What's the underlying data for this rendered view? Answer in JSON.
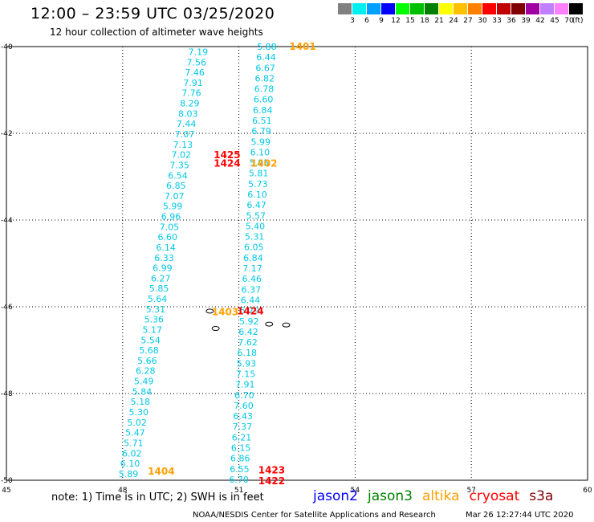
{
  "header": {
    "title": "12:00 – 23:59 UTC 03/25/2020",
    "subtitle": "12 hour collection of altimeter wave heights"
  },
  "legend": {
    "unit": "(ft)",
    "colors": [
      "#808080",
      "#00f0f0",
      "#00a0ff",
      "#0000ff",
      "#00ff00",
      "#00c000",
      "#008000",
      "#ffff00",
      "#ffc000",
      "#ff8000",
      "#ff0000",
      "#c00000",
      "#800000",
      "#a000a0",
      "#c080ff",
      "#ff80ff",
      "#000000"
    ],
    "labels": [
      "3",
      "6",
      "9",
      "12",
      "15",
      "18",
      "21",
      "24",
      "27",
      "30",
      "33",
      "36",
      "39",
      "42",
      "45",
      "70"
    ]
  },
  "map_data": {
    "lon_min": 45,
    "lon_max": 60,
    "lat_min": -50,
    "lat_max": -40,
    "x_ticks": [
      45,
      48,
      51,
      54,
      57,
      60
    ],
    "x_tick_labels": [
      "45",
      "48",
      "51",
      "54",
      "57",
      "60"
    ],
    "y_ticks": [
      -40,
      -42,
      -44,
      -46,
      -48,
      -50
    ],
    "y_tick_labels": [
      "-40",
      "-42",
      "-44",
      "-46",
      "-48",
      "-50"
    ],
    "tracks": [
      {
        "color": "#00c8e6",
        "lat_start": -40.12,
        "lat_end": -49.85,
        "lon_start": 49.95,
        "lon_end": 48.15,
        "values": [
          "7.19",
          "7.56",
          "7.46",
          "7.91",
          "7.76",
          "8.29",
          "8.03",
          "7.44",
          "7.07",
          "7.13",
          "7.02",
          "7.35",
          "6.54",
          "6.85",
          "7.07",
          "5.99",
          "6.96",
          "7.05",
          "6.60",
          "6.14",
          "6.33",
          "6.99",
          "6.27",
          "5.85",
          "5.64",
          "5.31",
          "5.36",
          "5.17",
          "5.54",
          "5.68",
          "5.66",
          "6.28",
          "5.49",
          "5.84",
          "5.18",
          "5.30",
          "5.02",
          "5.47",
          "5.71",
          "6.02",
          "6.10",
          "5.89"
        ]
      },
      {
        "color": "#00c8e6",
        "lat_start": -40.0,
        "lat_end": -49.98,
        "lon_start": 51.72,
        "lon_end": 51.0,
        "values": [
          "5.88",
          "6.44",
          "6.67",
          "6.82",
          "6.78",
          "6.60",
          "6.84",
          "6.51",
          "6.79",
          "5.99",
          "6.10",
          "5.95",
          "5.81",
          "5.73",
          "6.10",
          "6.47",
          "5.57",
          "5.40",
          "5.31",
          "6.05",
          "6.84",
          "7.17",
          "6.46",
          "6.37",
          "6.44",
          "5.79",
          "5.92",
          "6.42",
          "7.62",
          "6.18",
          "5.93",
          "7.15",
          "7.91",
          "6.70",
          "7.60",
          "6.43",
          "7.37",
          "6.21",
          "6.15",
          "6.86",
          "6.55",
          "6.70"
        ]
      }
    ],
    "passes": [
      {
        "label": "1401",
        "color": "#ffa000",
        "lon": 52.3,
        "lat": -39.98
      },
      {
        "label": "1425",
        "color": "#ff0000",
        "lon": 50.35,
        "lat": -42.48
      },
      {
        "label": "1424",
        "color": "#ff0000",
        "lon": 50.35,
        "lat": -42.68
      },
      {
        "label": "1402",
        "color": "#ffa000",
        "lon": 51.3,
        "lat": -42.68
      },
      {
        "label": "1403",
        "color": "#ffa000",
        "lon": 50.3,
        "lat": -46.1
      },
      {
        "label": "1424",
        "color": "#ff0000",
        "lon": 50.95,
        "lat": -46.08
      },
      {
        "label": "1404",
        "color": "#ffa000",
        "lon": 48.65,
        "lat": -49.78
      },
      {
        "label": "1423",
        "color": "#ff0000",
        "lon": 51.5,
        "lat": -49.75
      },
      {
        "label": "1422",
        "color": "#ff0000",
        "lon": 51.5,
        "lat": -50.0
      }
    ],
    "islands": [
      {
        "lon": 51.78,
        "lat": -46.4
      },
      {
        "lon": 52.22,
        "lat": -46.42
      },
      {
        "lon": 50.25,
        "lat": -46.1
      },
      {
        "lon": 50.4,
        "lat": -46.5
      }
    ]
  },
  "note": "note:  1) Time is in UTC; 2) SWH is in feet",
  "satellites": [
    {
      "name": "jason2",
      "color": "#0000ff"
    },
    {
      "name": "jason3",
      "color": "#008000"
    },
    {
      "name": "altika",
      "color": "#ffa000"
    },
    {
      "name": "cryosat",
      "color": "#ff0000"
    },
    {
      "name": "s3a",
      "color": "#800000"
    }
  ],
  "footer": {
    "credit": "NOAA/NESDIS Center for Satellite Applications and Research",
    "timestamp": "Mar 26 12:27:44 UTC 2020"
  }
}
